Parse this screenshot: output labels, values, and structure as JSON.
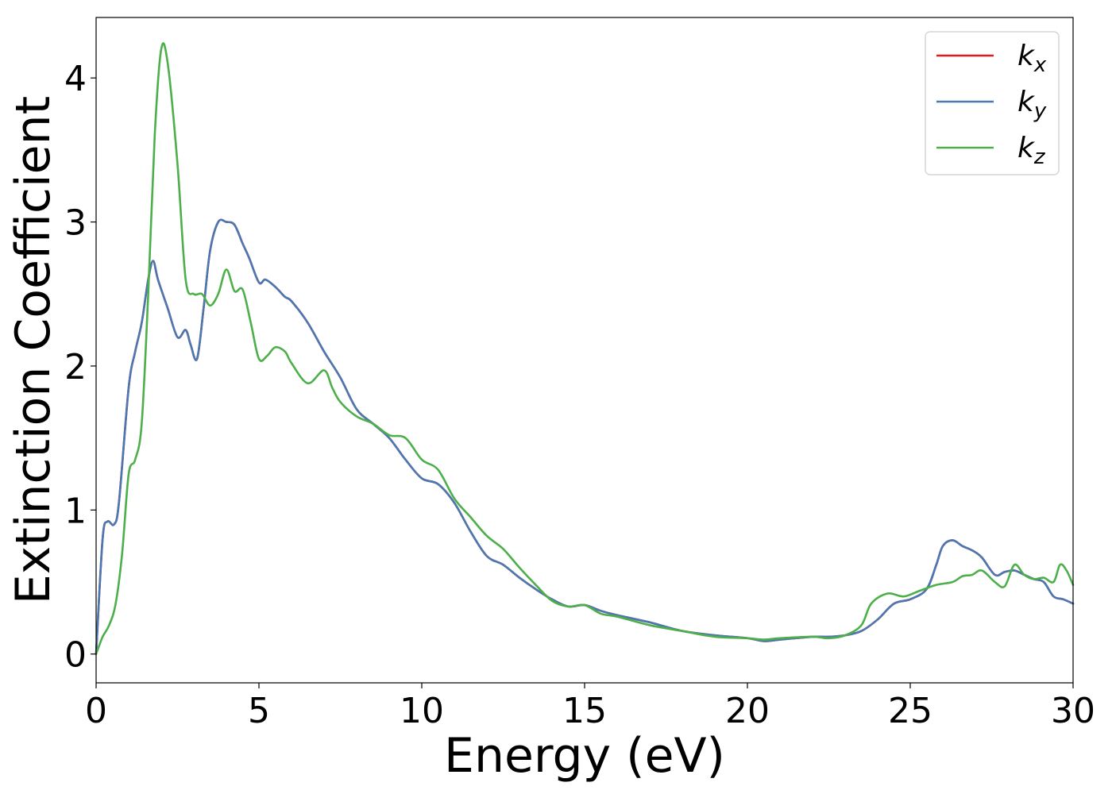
{
  "chart_data": {
    "type": "line",
    "xlabel": "Energy (eV)",
    "ylabel": "Extinction Coefficient",
    "xlim": [
      0,
      30
    ],
    "ylim": [
      -0.2,
      4.42
    ],
    "xticks": [
      0,
      5,
      10,
      15,
      20,
      25,
      30
    ],
    "yticks": [
      0,
      1,
      2,
      3,
      4
    ],
    "grid": false,
    "legend_position": "top-right",
    "series": [
      {
        "name": "k_x",
        "label_base": "k",
        "label_sub": "x",
        "color": "#e41a1c",
        "x": [
          0,
          0.2,
          0.35,
          0.55,
          0.7,
          1.0,
          1.2,
          1.4,
          1.6,
          1.75,
          1.9,
          2.2,
          2.5,
          2.75,
          2.9,
          3.1,
          3.3,
          3.5,
          3.75,
          4.0,
          4.25,
          4.5,
          4.7,
          5.0,
          5.2,
          5.5,
          5.8,
          6.0,
          6.5,
          7.0,
          7.5,
          8.0,
          8.5,
          9.0,
          9.5,
          10.0,
          10.5,
          11.0,
          11.5,
          12.0,
          12.5,
          13.0,
          13.5,
          14.0,
          14.5,
          15.0,
          15.5,
          16.0,
          17.0,
          18.0,
          19.0,
          20.0,
          20.5,
          21.0,
          22.0,
          22.5,
          23.0,
          23.5,
          24.0,
          24.5,
          25.0,
          25.5,
          25.8,
          26.0,
          26.3,
          26.6,
          26.9,
          27.2,
          27.6,
          27.9,
          28.2,
          28.5,
          28.8,
          29.1,
          29.4,
          29.7,
          30.0
        ],
        "y": [
          0.0,
          0.8,
          0.92,
          0.9,
          1.05,
          1.85,
          2.1,
          2.3,
          2.6,
          2.73,
          2.6,
          2.4,
          2.2,
          2.25,
          2.15,
          2.05,
          2.4,
          2.8,
          3.0,
          3.0,
          2.98,
          2.85,
          2.75,
          2.58,
          2.6,
          2.55,
          2.48,
          2.45,
          2.3,
          2.1,
          1.92,
          1.7,
          1.6,
          1.5,
          1.35,
          1.22,
          1.18,
          1.05,
          0.85,
          0.68,
          0.62,
          0.53,
          0.45,
          0.38,
          0.33,
          0.34,
          0.3,
          0.27,
          0.22,
          0.16,
          0.13,
          0.11,
          0.09,
          0.1,
          0.12,
          0.12,
          0.13,
          0.16,
          0.24,
          0.35,
          0.38,
          0.45,
          0.62,
          0.75,
          0.79,
          0.75,
          0.72,
          0.67,
          0.55,
          0.57,
          0.58,
          0.55,
          0.52,
          0.5,
          0.4,
          0.38,
          0.35
        ]
      },
      {
        "name": "k_y",
        "label_base": "k",
        "label_sub": "y",
        "color": "#4a78b2",
        "x": [
          0,
          0.2,
          0.35,
          0.55,
          0.7,
          1.0,
          1.2,
          1.4,
          1.6,
          1.75,
          1.9,
          2.2,
          2.5,
          2.75,
          2.9,
          3.1,
          3.3,
          3.5,
          3.75,
          4.0,
          4.25,
          4.5,
          4.7,
          5.0,
          5.2,
          5.5,
          5.8,
          6.0,
          6.5,
          7.0,
          7.5,
          8.0,
          8.5,
          9.0,
          9.5,
          10.0,
          10.5,
          11.0,
          11.5,
          12.0,
          12.5,
          13.0,
          13.5,
          14.0,
          14.5,
          15.0,
          15.5,
          16.0,
          17.0,
          18.0,
          19.0,
          20.0,
          20.5,
          21.0,
          22.0,
          22.5,
          23.0,
          23.5,
          24.0,
          24.5,
          25.0,
          25.5,
          25.8,
          26.0,
          26.3,
          26.6,
          26.9,
          27.2,
          27.6,
          27.9,
          28.2,
          28.5,
          28.8,
          29.1,
          29.4,
          29.7,
          30.0
        ],
        "y": [
          0.0,
          0.8,
          0.92,
          0.9,
          1.05,
          1.85,
          2.1,
          2.3,
          2.6,
          2.73,
          2.6,
          2.4,
          2.2,
          2.25,
          2.15,
          2.05,
          2.4,
          2.8,
          3.0,
          3.0,
          2.98,
          2.85,
          2.75,
          2.58,
          2.6,
          2.55,
          2.48,
          2.45,
          2.3,
          2.1,
          1.92,
          1.7,
          1.6,
          1.5,
          1.35,
          1.22,
          1.18,
          1.05,
          0.85,
          0.68,
          0.62,
          0.53,
          0.45,
          0.38,
          0.33,
          0.34,
          0.3,
          0.27,
          0.22,
          0.16,
          0.13,
          0.11,
          0.09,
          0.1,
          0.12,
          0.12,
          0.13,
          0.16,
          0.24,
          0.35,
          0.38,
          0.45,
          0.62,
          0.75,
          0.79,
          0.75,
          0.72,
          0.67,
          0.55,
          0.57,
          0.58,
          0.55,
          0.52,
          0.5,
          0.4,
          0.38,
          0.35
        ]
      },
      {
        "name": "k_z",
        "label_base": "k",
        "label_sub": "z",
        "color": "#4daf4a",
        "x": [
          0,
          0.2,
          0.4,
          0.6,
          0.8,
          1.0,
          1.2,
          1.4,
          1.6,
          1.8,
          2.0,
          2.2,
          2.5,
          2.75,
          3.0,
          3.25,
          3.5,
          3.75,
          4.0,
          4.25,
          4.5,
          4.75,
          5.0,
          5.25,
          5.5,
          5.8,
          6.0,
          6.5,
          7.0,
          7.25,
          7.5,
          8.0,
          8.5,
          9.0,
          9.5,
          10.0,
          10.5,
          11.0,
          11.5,
          12.0,
          12.5,
          13.0,
          13.5,
          14.0,
          14.5,
          15.0,
          15.5,
          16.0,
          17.0,
          18.0,
          19.0,
          20.0,
          20.5,
          21.0,
          22.0,
          22.5,
          23.0,
          23.5,
          23.8,
          24.3,
          24.8,
          25.3,
          25.8,
          26.3,
          26.6,
          26.9,
          27.2,
          27.6,
          27.9,
          28.2,
          28.5,
          28.8,
          29.1,
          29.4,
          29.6,
          29.8,
          30.0
        ],
        "y": [
          0.0,
          0.12,
          0.2,
          0.35,
          0.7,
          1.25,
          1.35,
          1.6,
          2.5,
          3.6,
          4.2,
          4.1,
          3.4,
          2.6,
          2.5,
          2.5,
          2.42,
          2.5,
          2.67,
          2.52,
          2.53,
          2.3,
          2.05,
          2.07,
          2.13,
          2.1,
          2.02,
          1.88,
          1.97,
          1.85,
          1.75,
          1.65,
          1.6,
          1.52,
          1.5,
          1.35,
          1.28,
          1.08,
          0.95,
          0.82,
          0.73,
          0.6,
          0.48,
          0.37,
          0.33,
          0.34,
          0.28,
          0.26,
          0.2,
          0.16,
          0.12,
          0.11,
          0.1,
          0.11,
          0.12,
          0.11,
          0.13,
          0.2,
          0.35,
          0.42,
          0.4,
          0.44,
          0.48,
          0.5,
          0.54,
          0.55,
          0.58,
          0.5,
          0.47,
          0.62,
          0.55,
          0.52,
          0.53,
          0.5,
          0.62,
          0.58,
          0.48
        ]
      }
    ]
  }
}
